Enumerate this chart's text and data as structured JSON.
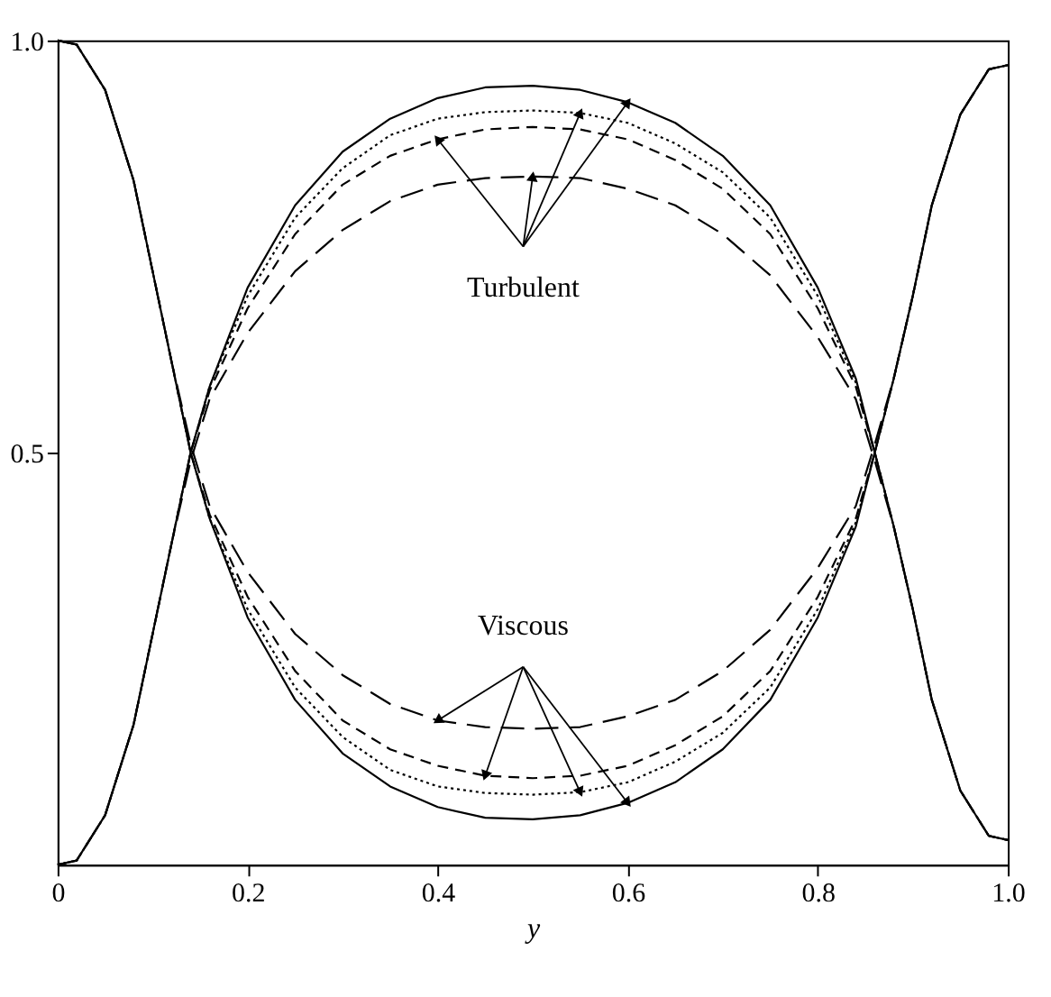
{
  "chart_data": {
    "type": "line",
    "xlabel": "y",
    "grid": false,
    "marker": "none",
    "xlim": [
      0,
      1
    ],
    "ylim": [
      0,
      1
    ],
    "xticks": [
      0,
      0.2,
      0.4,
      0.6,
      0.8,
      {
        "value": 1,
        "label": "1.0"
      }
    ],
    "yticks": [
      0.5,
      {
        "value": 1,
        "label": "1.0"
      }
    ],
    "x": [
      0,
      0.02,
      0.05,
      0.08,
      0.1,
      0.12,
      0.14,
      0.16,
      0.2,
      0.25,
      0.3,
      0.35,
      0.4,
      0.45,
      0.5,
      0.55,
      0.6,
      0.65,
      0.7,
      0.75,
      0.8,
      0.84,
      0.86,
      0.88,
      0.9,
      0.92,
      0.95,
      0.98,
      1.0
    ],
    "annotations": [
      {
        "text": "Turbulent",
        "x": 0.6,
        "y": 0.925
      },
      {
        "text": "Viscous",
        "x": 0.6,
        "y": 0.075
      }
    ],
    "series": [
      {
        "color": "#000000",
        "line_style": "solid",
        "values": [
          0,
          0.005,
          0.06,
          0.17,
          0.28,
          0.39,
          0.5,
          0.58,
          0.7,
          0.8,
          0.865,
          0.905,
          0.93,
          0.943,
          0.945,
          0.94,
          0.925,
          0.9,
          0.86,
          0.8,
          0.7,
          0.59,
          0.5,
          0.41,
          0.31,
          0.2,
          0.09,
          0.035,
          0.03
        ]
      },
      {
        "color": "#000000",
        "line_style": "dotted",
        "values": [
          0,
          0.005,
          0.06,
          0.17,
          0.28,
          0.39,
          0.5,
          0.58,
          0.69,
          0.785,
          0.845,
          0.885,
          0.905,
          0.913,
          0.915,
          0.912,
          0.9,
          0.875,
          0.84,
          0.785,
          0.69,
          0.585,
          0.5,
          0.41,
          0.31,
          0.2,
          0.09,
          0.035,
          0.03
        ]
      },
      {
        "color": "#000000",
        "line_style": "dashed",
        "values": [
          0,
          0.005,
          0.06,
          0.17,
          0.28,
          0.39,
          0.5,
          0.575,
          0.675,
          0.765,
          0.825,
          0.86,
          0.88,
          0.892,
          0.895,
          0.892,
          0.88,
          0.855,
          0.82,
          0.765,
          0.675,
          0.58,
          0.5,
          0.41,
          0.31,
          0.2,
          0.09,
          0.035,
          0.03
        ]
      },
      {
        "color": "#000000",
        "line_style": "longdash",
        "values": [
          0,
          0.005,
          0.06,
          0.17,
          0.28,
          0.39,
          0.49,
          0.565,
          0.645,
          0.72,
          0.77,
          0.805,
          0.825,
          0.833,
          0.835,
          0.833,
          0.82,
          0.8,
          0.765,
          0.715,
          0.64,
          0.565,
          0.49,
          0.41,
          0.31,
          0.2,
          0.09,
          0.035,
          0.03
        ]
      },
      {
        "color": "#000000",
        "line_style": "solid",
        "values": [
          1,
          0.995,
          0.94,
          0.83,
          0.72,
          0.61,
          0.5,
          0.42,
          0.3,
          0.2,
          0.135,
          0.095,
          0.07,
          0.057,
          0.055,
          0.06,
          0.075,
          0.1,
          0.14,
          0.2,
          0.3,
          0.41,
          0.5,
          0.59,
          0.69,
          0.8,
          0.91,
          0.965,
          0.97
        ]
      },
      {
        "color": "#000000",
        "line_style": "dotted",
        "values": [
          1,
          0.995,
          0.94,
          0.83,
          0.72,
          0.61,
          0.5,
          0.42,
          0.31,
          0.215,
          0.155,
          0.115,
          0.095,
          0.087,
          0.085,
          0.088,
          0.1,
          0.125,
          0.16,
          0.215,
          0.31,
          0.415,
          0.5,
          0.59,
          0.69,
          0.8,
          0.91,
          0.965,
          0.97
        ]
      },
      {
        "color": "#000000",
        "line_style": "dashed",
        "values": [
          1,
          0.995,
          0.94,
          0.83,
          0.72,
          0.61,
          0.5,
          0.425,
          0.325,
          0.235,
          0.175,
          0.14,
          0.12,
          0.108,
          0.105,
          0.108,
          0.12,
          0.145,
          0.18,
          0.235,
          0.325,
          0.42,
          0.5,
          0.59,
          0.69,
          0.8,
          0.91,
          0.965,
          0.97
        ]
      },
      {
        "color": "#000000",
        "line_style": "longdash",
        "values": [
          1,
          0.995,
          0.94,
          0.83,
          0.72,
          0.61,
          0.51,
          0.435,
          0.355,
          0.28,
          0.23,
          0.195,
          0.175,
          0.167,
          0.165,
          0.167,
          0.18,
          0.2,
          0.235,
          0.285,
          0.36,
          0.435,
          0.51,
          0.59,
          0.69,
          0.8,
          0.91,
          0.965,
          0.97
        ]
      }
    ]
  }
}
